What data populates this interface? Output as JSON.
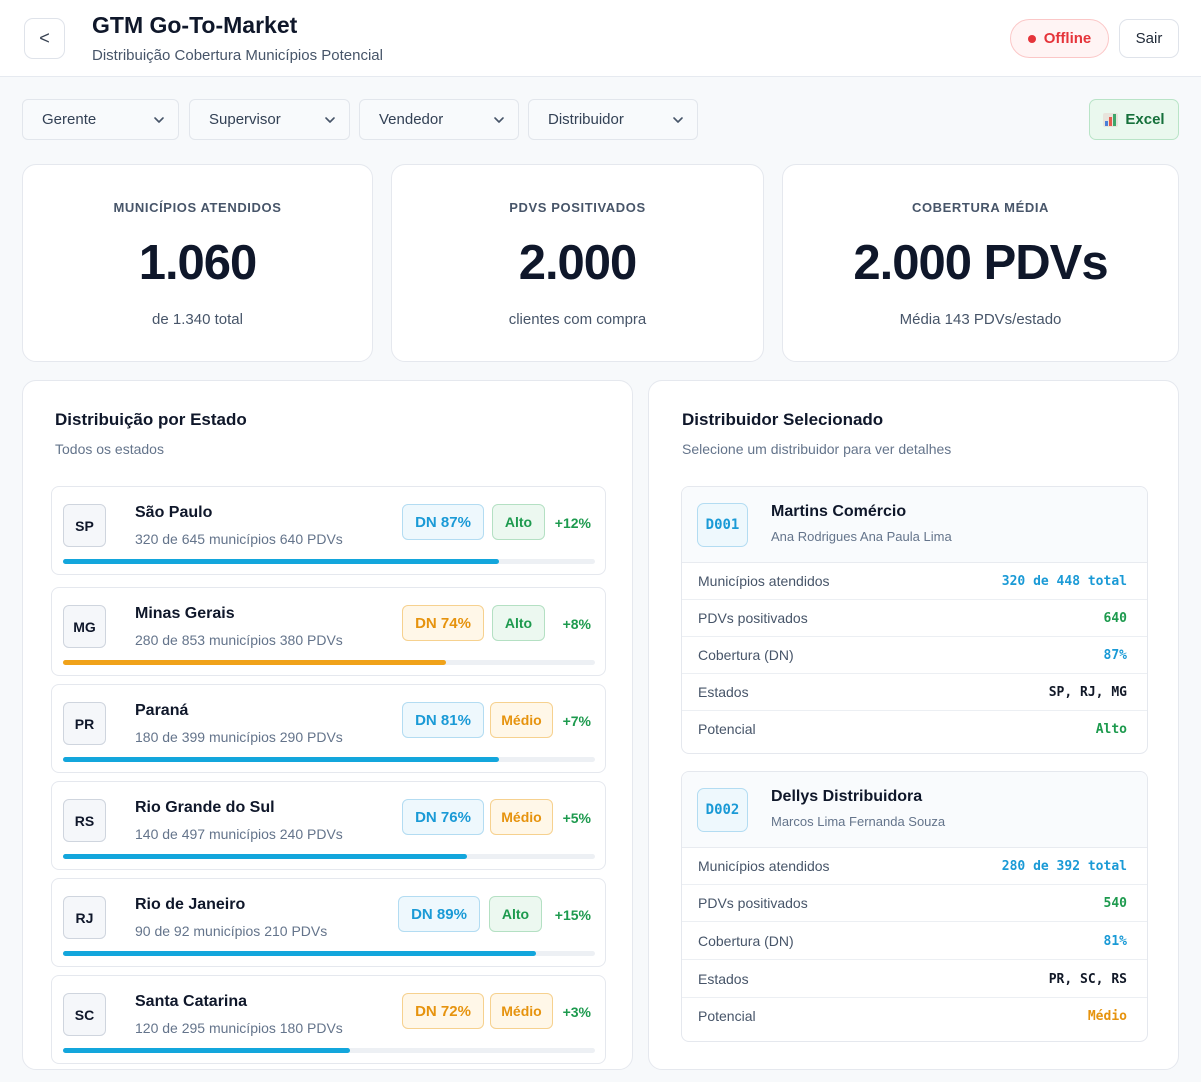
{
  "header": {
    "back_label": "<",
    "title": "GTM Go-To-Market",
    "subtitle": "Distribuição Cobertura Municípios Potencial",
    "status_label": "Offline",
    "logout_label": "Sair"
  },
  "filters": {
    "gerente": "Gerente",
    "supervisor": "Supervisor",
    "vendedor": "Vendedor",
    "distribuidor": "Distribuidor",
    "excel_label": "Excel"
  },
  "kpis": [
    {
      "label": "MUNICÍPIOS ATENDIDOS",
      "value": "1.060",
      "sub": "de 1.340 total"
    },
    {
      "label": "PDVS POSITIVADOS",
      "value": "2.000",
      "sub": "clientes com compra"
    },
    {
      "label": "COBERTURA MÉDIA",
      "value": "2.000 PDVs",
      "sub": "Média 143 PDVs/estado"
    }
  ],
  "states_panel": {
    "title": "Distribuição por Estado",
    "subtitle": "Todos os estados",
    "rows": [
      {
        "code": "SP",
        "name": "São Paulo",
        "detail": "320 de 645 municípios 640 PDVs",
        "dn": "DN 87%",
        "potential": "Alto",
        "growth": "+12%",
        "progress": 0.82,
        "bar_color": "#13a6dc"
      },
      {
        "code": "MG",
        "name": "Minas Gerais",
        "detail": "280 de 853 municípios 380 PDVs",
        "dn": "DN 74%",
        "potential": "Alto",
        "growth": "+8%",
        "progress": 0.72,
        "bar_color": "#f0a21a"
      },
      {
        "code": "PR",
        "name": "Paraná",
        "detail": "180 de 399 municípios 290 PDVs",
        "dn": "DN 81%",
        "potential": "Médio",
        "growth": "+7%",
        "progress": 0.82,
        "bar_color": "#13a6dc"
      },
      {
        "code": "RS",
        "name": "Rio Grande do Sul",
        "detail": "140 de 497 municípios 240 PDVs",
        "dn": "DN 76%",
        "potential": "Médio",
        "growth": "+5%",
        "progress": 0.76,
        "bar_color": "#13a6dc"
      },
      {
        "code": "RJ",
        "name": "Rio de Janeiro",
        "detail": "90 de 92 municípios 210 PDVs",
        "dn": "DN 89%",
        "potential": "Alto",
        "growth": "+15%",
        "progress": 0.89,
        "bar_color": "#13a6dc"
      },
      {
        "code": "SC",
        "name": "Santa Catarina",
        "detail": "120 de 295 municípios 180 PDVs",
        "dn": "DN 72%",
        "potential": "Médio",
        "growth": "+3%",
        "progress": 0.54,
        "bar_color": "#13a6dc"
      }
    ]
  },
  "distributor_panel": {
    "title": "Distribuidor Selecionado",
    "subtitle": "Selecione um distribuidor para ver detalhes",
    "cards": [
      {
        "code": "D001",
        "name": "Martins Comércio",
        "people": "Ana Rodrigues Ana Paula Lima",
        "lines": [
          {
            "label": "Municípios atendidos",
            "value": "320 de 448 total"
          },
          {
            "label": "PDVs positivados",
            "value": "640"
          },
          {
            "label": "Cobertura (DN)",
            "value": "87%"
          },
          {
            "label": "Estados",
            "value": "SP, RJ, MG"
          },
          {
            "label": "Potencial",
            "value": "Alto"
          }
        ]
      },
      {
        "code": "D002",
        "name": "Dellys Distribuidora",
        "people": "Marcos Lima Fernanda Souza",
        "lines": [
          {
            "label": "Municípios atendidos",
            "value": "280 de 392 total"
          },
          {
            "label": "PDVs positivados",
            "value": "540"
          },
          {
            "label": "Cobertura (DN)",
            "value": "81%"
          },
          {
            "label": "Estados",
            "value": "PR, SC, RS"
          },
          {
            "label": "Potencial",
            "value": "Médio"
          }
        ]
      }
    ]
  }
}
